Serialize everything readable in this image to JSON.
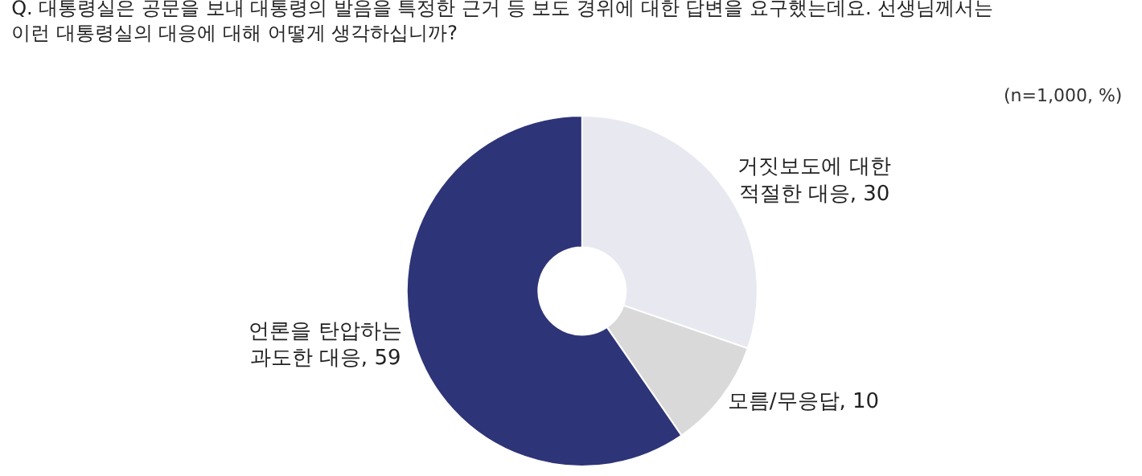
{
  "chart_data": {
    "type": "donut",
    "title": "Q. 대통령실은 공문을 보내 대통령의 발음을 특정한 근거 등 보도 경위에 대한 답변을 요구했는데요. 선생님께서는\n이런 대통령실의 대응에 대해 어떻게 생각하십니까?",
    "annotations": [
      "(n=1,000, %)"
    ],
    "categories": [
      "거짓보도에 대한\n적절한 대응",
      "모름/무응답",
      "언론을 탄압하는\n과도한 대응"
    ],
    "values": [
      30,
      10,
      59
    ],
    "colors": [
      "#e8e8f0",
      "#d9d9d9",
      "#2e3478"
    ],
    "value_labels": [
      ", 30",
      ", 10",
      ", 59"
    ],
    "legend": false
  }
}
